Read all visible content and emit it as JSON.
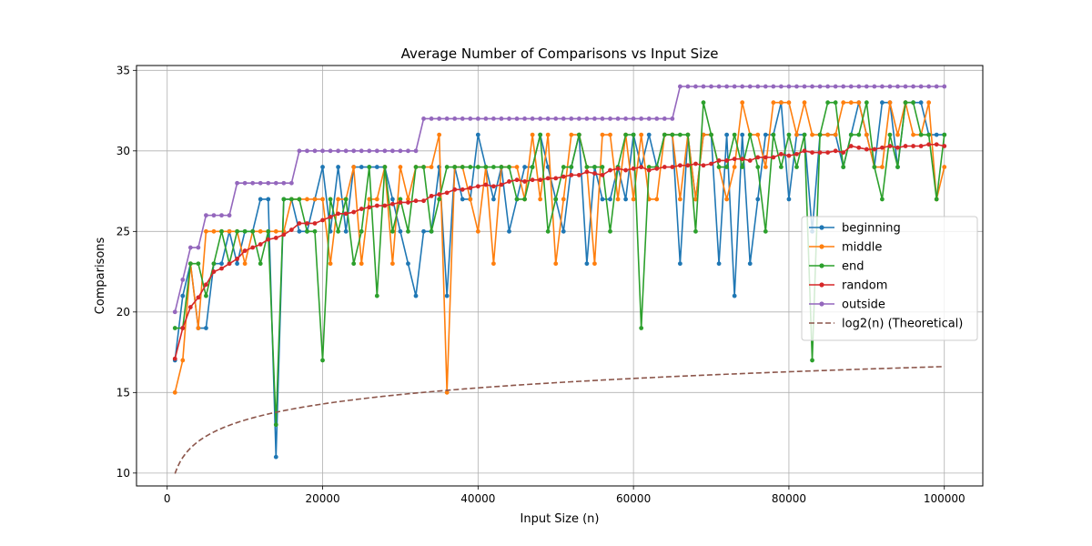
{
  "chart_data": {
    "type": "line",
    "title": "Average Number of Comparisons vs Input Size",
    "xlabel": "Input Size (n)",
    "ylabel": "Comparisons",
    "xlim": [
      -3950,
      104950
    ],
    "ylim": [
      9.2,
      35.3
    ],
    "xticks": [
      0,
      20000,
      40000,
      60000,
      80000,
      100000
    ],
    "xtick_labels": [
      "0",
      "20000",
      "40000",
      "60000",
      "80000",
      "100000"
    ],
    "yticks": [
      10,
      15,
      20,
      25,
      30,
      35
    ],
    "ytick_labels": [
      "10",
      "15",
      "20",
      "25",
      "30",
      "35"
    ],
    "grid": true,
    "legend_position": "center-right",
    "x_start": 1000,
    "x_step": 1000,
    "series": [
      {
        "name": "beginning",
        "color": "#1f77b4",
        "values": [
          17,
          21,
          23,
          19,
          19,
          23,
          23,
          25,
          23,
          25,
          25,
          27,
          27,
          11,
          27,
          27,
          25,
          25,
          27,
          29,
          25,
          29,
          25,
          29,
          29,
          29,
          29,
          29,
          27,
          25,
          23,
          21,
          25,
          25,
          29,
          21,
          29,
          27,
          27,
          31,
          29,
          27,
          29,
          25,
          27,
          29,
          29,
          31,
          29,
          27,
          25,
          29,
          31,
          23,
          29,
          27,
          27,
          29,
          27,
          31,
          29,
          31,
          29,
          31,
          31,
          23,
          31,
          27,
          31,
          31,
          23,
          31,
          21,
          31,
          23,
          27,
          31,
          31,
          33,
          27,
          31,
          31,
          25,
          31,
          31,
          31,
          29,
          31,
          33,
          31,
          29,
          33,
          33,
          29,
          33,
          33,
          33,
          31,
          31,
          31
        ]
      },
      {
        "name": "middle",
        "color": "#ff7f0e",
        "values": [
          15,
          17,
          23,
          19,
          25,
          25,
          25,
          25,
          25,
          23,
          25,
          25,
          25,
          25,
          25,
          27,
          27,
          27,
          27,
          27,
          23,
          27,
          27,
          29,
          23,
          27,
          27,
          29,
          23,
          29,
          27,
          29,
          29,
          29,
          31,
          15,
          29,
          29,
          27,
          25,
          29,
          23,
          29,
          29,
          29,
          27,
          31,
          27,
          31,
          23,
          27,
          31,
          31,
          29,
          23,
          31,
          31,
          27,
          31,
          27,
          31,
          27,
          27,
          31,
          31,
          27,
          31,
          27,
          31,
          31,
          29,
          27,
          29,
          33,
          31,
          31,
          29,
          33,
          33,
          33,
          31,
          33,
          31,
          31,
          31,
          31,
          33,
          33,
          33,
          31,
          29,
          29,
          33,
          31,
          33,
          31,
          31,
          33,
          27,
          29
        ]
      },
      {
        "name": "end",
        "color": "#2ca02c",
        "values": [
          19,
          19,
          23,
          23,
          21,
          23,
          25,
          23,
          25,
          25,
          25,
          23,
          25,
          13,
          27,
          27,
          27,
          25,
          25,
          17,
          27,
          25,
          27,
          23,
          25,
          29,
          21,
          29,
          25,
          27,
          25,
          29,
          29,
          25,
          27,
          29,
          29,
          29,
          29,
          29,
          29,
          29,
          29,
          29,
          27,
          27,
          29,
          31,
          25,
          27,
          29,
          29,
          31,
          29,
          29,
          29,
          25,
          29,
          31,
          31,
          19,
          29,
          29,
          31,
          31,
          31,
          31,
          25,
          33,
          31,
          29,
          29,
          31,
          29,
          31,
          29,
          25,
          31,
          29,
          31,
          29,
          31,
          17,
          31,
          33,
          33,
          29,
          31,
          31,
          33,
          29,
          27,
          31,
          29,
          33,
          33,
          31,
          31,
          27,
          31
        ]
      },
      {
        "name": "random",
        "color": "#d62728",
        "values": [
          17.1,
          19.0,
          20.3,
          20.9,
          21.7,
          22.5,
          22.7,
          23.0,
          23.3,
          23.8,
          24.0,
          24.2,
          24.5,
          24.6,
          24.8,
          25.1,
          25.5,
          25.5,
          25.5,
          25.7,
          25.9,
          26.1,
          26.1,
          26.2,
          26.4,
          26.5,
          26.6,
          26.6,
          26.7,
          26.8,
          26.8,
          26.9,
          26.9,
          27.2,
          27.3,
          27.4,
          27.6,
          27.6,
          27.7,
          27.8,
          27.9,
          27.8,
          27.9,
          28.1,
          28.2,
          28.1,
          28.2,
          28.2,
          28.3,
          28.3,
          28.4,
          28.5,
          28.5,
          28.7,
          28.6,
          28.5,
          28.8,
          28.9,
          28.8,
          28.9,
          29.0,
          28.8,
          28.9,
          29.0,
          29.0,
          29.1,
          29.1,
          29.2,
          29.1,
          29.2,
          29.4,
          29.4,
          29.5,
          29.5,
          29.4,
          29.6,
          29.6,
          29.6,
          29.8,
          29.7,
          29.8,
          30.0,
          29.9,
          29.9,
          29.9,
          30.0,
          29.9,
          30.3,
          30.2,
          30.1,
          30.1,
          30.2,
          30.3,
          30.2,
          30.3,
          30.3,
          30.3,
          30.4,
          30.4,
          30.3
        ]
      },
      {
        "name": "outside",
        "color": "#9467bd",
        "values": [
          20,
          22,
          24,
          24,
          26,
          26,
          26,
          26,
          28,
          28,
          28,
          28,
          28,
          28,
          28,
          28,
          30,
          30,
          30,
          30,
          30,
          30,
          30,
          30,
          30,
          30,
          30,
          30,
          30,
          30,
          30,
          30,
          32,
          32,
          32,
          32,
          32,
          32,
          32,
          32,
          32,
          32,
          32,
          32,
          32,
          32,
          32,
          32,
          32,
          32,
          32,
          32,
          32,
          32,
          32,
          32,
          32,
          32,
          32,
          32,
          32,
          32,
          32,
          32,
          32,
          34,
          34,
          34,
          34,
          34,
          34,
          34,
          34,
          34,
          34,
          34,
          34,
          34,
          34,
          34,
          34,
          34,
          34,
          34,
          34,
          34,
          34,
          34,
          34,
          34,
          34,
          34,
          34,
          34,
          34,
          34,
          34,
          34,
          34,
          34
        ]
      },
      {
        "name": "log2(n) (Theoretical)",
        "color": "#8c564b",
        "dashed": true,
        "formula": "log2(n)",
        "x_range": [
          1000,
          100000
        ]
      }
    ]
  }
}
